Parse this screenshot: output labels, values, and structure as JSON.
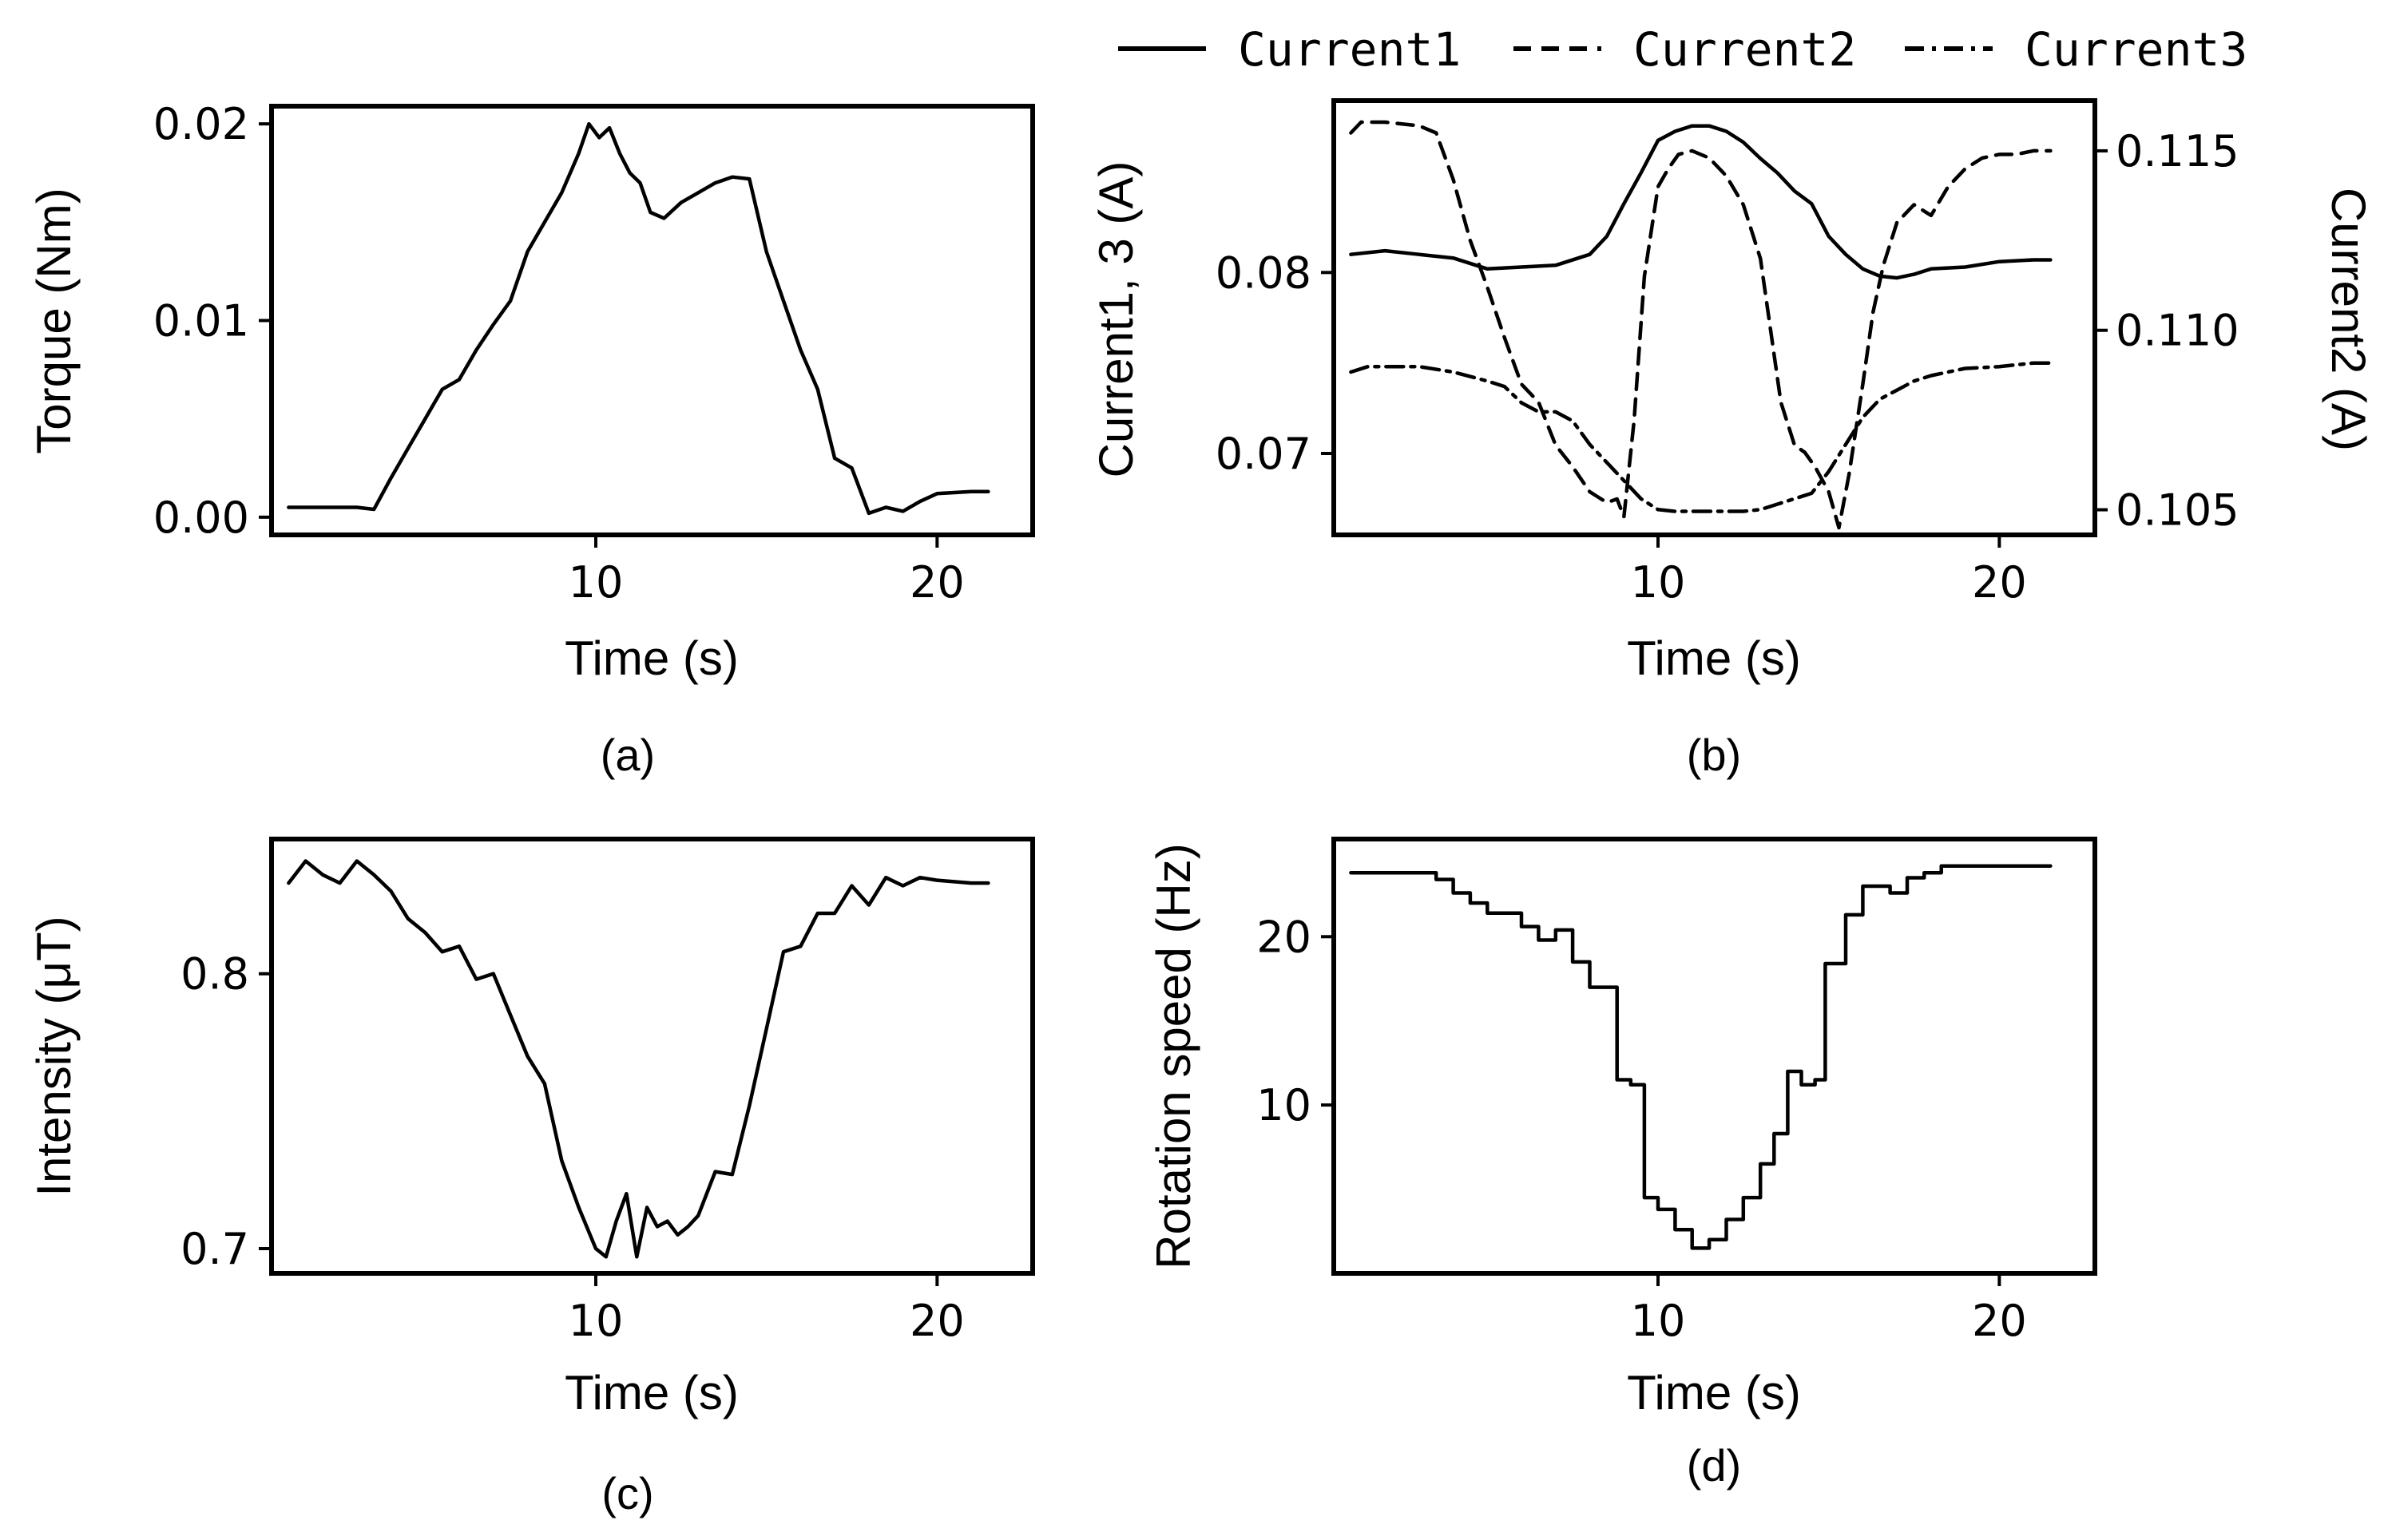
{
  "chart_data": [
    {
      "id": "a",
      "type": "line",
      "caption": "(a)",
      "xlabel": "Time (s)",
      "ylabel": "Torque (Nm)",
      "xlim": [
        0.5,
        22.8
      ],
      "ylim": [
        -0.0009,
        0.0209
      ],
      "xticks": [
        {
          "v": 10,
          "label": "10"
        },
        {
          "v": 20,
          "label": "20"
        }
      ],
      "yticks": [
        {
          "v": 0.0,
          "label": "0.00"
        },
        {
          "v": 0.01,
          "label": "0.01"
        },
        {
          "v": 0.02,
          "label": "0.02"
        }
      ],
      "series": [
        {
          "name": "Torque",
          "style": "solid",
          "x": [
            1.0,
            2.0,
            3.0,
            3.5,
            4.0,
            4.5,
            5.0,
            5.5,
            6.0,
            6.5,
            7.0,
            7.5,
            8.0,
            8.5,
            9.0,
            9.5,
            9.8,
            10.1,
            10.4,
            10.7,
            11.0,
            11.3,
            11.6,
            12.0,
            12.5,
            13.0,
            13.5,
            14.0,
            14.5,
            15.0,
            15.5,
            16.0,
            16.5,
            17.0,
            17.5,
            18.0,
            18.5,
            19.0,
            19.5,
            20.0,
            21.0,
            21.5
          ],
          "y": [
            0.0005,
            0.0005,
            0.0005,
            0.0004,
            0.002,
            0.0035,
            0.005,
            0.0065,
            0.007,
            0.0085,
            0.0098,
            0.011,
            0.0135,
            0.015,
            0.0165,
            0.0185,
            0.02,
            0.0193,
            0.0198,
            0.0185,
            0.0175,
            0.017,
            0.0155,
            0.0152,
            0.016,
            0.0165,
            0.017,
            0.0173,
            0.0172,
            0.0135,
            0.011,
            0.0085,
            0.0065,
            0.003,
            0.0025,
            0.0002,
            0.0005,
            0.0003,
            0.0008,
            0.0012,
            0.0013,
            0.0013
          ]
        }
      ]
    },
    {
      "id": "b",
      "type": "line",
      "caption": "(b)",
      "xlabel": "Time (s)",
      "ylabel": "Current1, 3 (A)",
      "ylabel_right": "Current2 (A)",
      "xlim": [
        0.5,
        22.8
      ],
      "ylim": [
        0.0655,
        0.0895
      ],
      "ylim_right": [
        0.1043,
        0.1164
      ],
      "xticks": [
        {
          "v": 10,
          "label": "10"
        },
        {
          "v": 20,
          "label": "20"
        }
      ],
      "yticks": [
        {
          "v": 0.07,
          "label": "0.07"
        },
        {
          "v": 0.08,
          "label": "0.08"
        }
      ],
      "yticks_right": [
        {
          "v": 0.105,
          "label": "0.105"
        },
        {
          "v": 0.11,
          "label": "0.110"
        },
        {
          "v": 0.115,
          "label": "0.115"
        }
      ],
      "legend": {
        "position": "top"
      },
      "series": [
        {
          "name": "Current1",
          "style": "solid",
          "axis": "left",
          "x": [
            1.0,
            2.0,
            3.0,
            4.0,
            5.0,
            6.0,
            7.0,
            8.0,
            8.5,
            9.0,
            9.5,
            10.0,
            10.5,
            11.0,
            11.5,
            12.0,
            12.5,
            13.0,
            13.5,
            14.0,
            14.5,
            15.0,
            15.5,
            16.0,
            16.5,
            17.0,
            17.5,
            18.0,
            19.0,
            20.0,
            21.0,
            21.5
          ],
          "y": [
            0.081,
            0.0812,
            0.081,
            0.0808,
            0.0802,
            0.0803,
            0.0804,
            0.081,
            0.082,
            0.0838,
            0.0855,
            0.0873,
            0.0878,
            0.0881,
            0.0881,
            0.0878,
            0.0872,
            0.0863,
            0.0855,
            0.0845,
            0.0838,
            0.082,
            0.081,
            0.0802,
            0.0798,
            0.0797,
            0.0799,
            0.0802,
            0.0803,
            0.0806,
            0.0807,
            0.0807
          ]
        },
        {
          "name": "Current2",
          "style": "dashed",
          "axis": "right",
          "x": [
            1.0,
            1.3,
            2.0,
            3.0,
            3.5,
            4.0,
            4.5,
            5.0,
            5.5,
            6.0,
            6.5,
            7.0,
            7.5,
            8.0,
            8.5,
            8.8,
            9.0,
            9.3,
            9.6,
            10.0,
            10.3,
            10.6,
            11.0,
            11.5,
            12.0,
            12.5,
            13.0,
            13.3,
            13.6,
            14.0,
            14.3,
            14.6,
            15.0,
            15.3,
            15.6,
            16.0,
            16.3,
            16.6,
            17.0,
            17.5,
            18.0,
            18.5,
            19.0,
            19.5,
            20.0,
            20.5,
            21.0,
            21.5
          ],
          "y": [
            0.1155,
            0.1158,
            0.1158,
            0.1157,
            0.1155,
            0.1142,
            0.1125,
            0.1112,
            0.1098,
            0.1085,
            0.108,
            0.1068,
            0.1062,
            0.1055,
            0.1052,
            0.1053,
            0.1048,
            0.1075,
            0.1115,
            0.114,
            0.1145,
            0.1149,
            0.115,
            0.1148,
            0.1143,
            0.1135,
            0.112,
            0.11,
            0.108,
            0.1068,
            0.1066,
            0.1062,
            0.1055,
            0.1045,
            0.106,
            0.1085,
            0.1105,
            0.1118,
            0.113,
            0.1135,
            0.1132,
            0.114,
            0.1145,
            0.1148,
            0.1149,
            0.1149,
            0.115,
            0.115
          ]
        },
        {
          "name": "Current3",
          "style": "dashdot",
          "axis": "left",
          "x": [
            1.0,
            1.5,
            2.0,
            3.0,
            4.0,
            5.0,
            5.5,
            6.0,
            6.5,
            7.0,
            7.5,
            8.0,
            8.5,
            9.0,
            9.5,
            10.0,
            10.5,
            11.0,
            11.5,
            12.0,
            12.5,
            13.0,
            13.5,
            14.0,
            14.5,
            15.0,
            15.5,
            16.0,
            16.5,
            17.0,
            17.5,
            18.0,
            18.5,
            19.0,
            20.0,
            21.0,
            21.5
          ],
          "y": [
            0.0745,
            0.0748,
            0.0748,
            0.0748,
            0.0745,
            0.074,
            0.0737,
            0.0728,
            0.0723,
            0.0723,
            0.0718,
            0.0705,
            0.0695,
            0.0685,
            0.0675,
            0.0669,
            0.0668,
            0.0668,
            0.0668,
            0.0668,
            0.0668,
            0.0669,
            0.0672,
            0.0675,
            0.0678,
            0.069,
            0.0705,
            0.072,
            0.073,
            0.0735,
            0.074,
            0.0743,
            0.0745,
            0.0747,
            0.0748,
            0.075,
            0.075
          ]
        }
      ]
    },
    {
      "id": "c",
      "type": "line",
      "caption": "(c)",
      "xlabel": "Time (s)",
      "ylabel": "Intensity (μT)",
      "xlim": [
        0.5,
        22.8
      ],
      "ylim": [
        0.691,
        0.849
      ],
      "xticks": [
        {
          "v": 10,
          "label": "10"
        },
        {
          "v": 20,
          "label": "20"
        }
      ],
      "yticks": [
        {
          "v": 0.7,
          "label": "0.7"
        },
        {
          "v": 0.8,
          "label": "0.8"
        }
      ],
      "series": [
        {
          "name": "Intensity",
          "style": "solid",
          "x": [
            1.0,
            1.5,
            2.0,
            2.5,
            3.0,
            3.5,
            4.0,
            4.5,
            5.0,
            5.5,
            6.0,
            6.5,
            7.0,
            7.5,
            8.0,
            8.5,
            9.0,
            9.5,
            10.0,
            10.3,
            10.6,
            10.9,
            11.2,
            11.5,
            11.8,
            12.1,
            12.4,
            12.7,
            13.0,
            13.5,
            14.0,
            14.5,
            15.0,
            15.5,
            16.0,
            16.5,
            17.0,
            17.5,
            18.0,
            18.5,
            19.0,
            19.5,
            20.0,
            21.0,
            21.5
          ],
          "y": [
            0.833,
            0.841,
            0.836,
            0.833,
            0.841,
            0.836,
            0.83,
            0.82,
            0.815,
            0.808,
            0.81,
            0.798,
            0.8,
            0.785,
            0.77,
            0.76,
            0.732,
            0.715,
            0.7,
            0.697,
            0.71,
            0.72,
            0.697,
            0.715,
            0.708,
            0.71,
            0.705,
            0.708,
            0.712,
            0.728,
            0.727,
            0.752,
            0.78,
            0.808,
            0.81,
            0.822,
            0.822,
            0.832,
            0.825,
            0.835,
            0.832,
            0.835,
            0.834,
            0.833,
            0.833
          ]
        }
      ]
    },
    {
      "id": "d",
      "type": "line",
      "caption": "(d)",
      "xlabel": "Time (s)",
      "ylabel": "Rotation speed (Hz)",
      "xlim": [
        0.5,
        22.8
      ],
      "ylim": [
        0.0,
        25.8
      ],
      "xticks": [
        {
          "v": 10,
          "label": "10"
        },
        {
          "v": 20,
          "label": "20"
        }
      ],
      "yticks": [
        {
          "v": 10,
          "label": "10"
        },
        {
          "v": 20,
          "label": "20"
        }
      ],
      "series": [
        {
          "name": "Rotation speed",
          "style": "solid",
          "x": [
            1.0,
            3.5,
            3.5,
            4.0,
            4.0,
            4.5,
            4.5,
            5.0,
            5.0,
            6.0,
            6.0,
            6.5,
            6.5,
            7.0,
            7.0,
            7.5,
            7.5,
            8.0,
            8.0,
            8.8,
            8.8,
            9.2,
            9.2,
            9.6,
            9.6,
            10.0,
            10.0,
            10.5,
            10.5,
            11.0,
            11.0,
            11.5,
            11.5,
            12.0,
            12.0,
            12.5,
            12.5,
            13.0,
            13.0,
            13.4,
            13.4,
            13.8,
            13.8,
            14.2,
            14.2,
            14.6,
            14.6,
            14.9,
            14.9,
            15.5,
            15.5,
            16.0,
            16.0,
            16.8,
            16.8,
            17.3,
            17.3,
            17.8,
            17.8,
            18.3,
            18.3,
            19.8,
            19.8,
            21.5
          ],
          "y": [
            23.8,
            23.8,
            23.4,
            23.4,
            22.6,
            22.6,
            22.0,
            22.0,
            21.4,
            21.4,
            20.6,
            20.6,
            19.8,
            19.8,
            20.4,
            20.4,
            18.5,
            18.5,
            17.0,
            17.0,
            11.5,
            11.5,
            11.2,
            11.2,
            4.5,
            4.5,
            3.8,
            3.8,
            2.6,
            2.6,
            1.5,
            1.5,
            2.0,
            2.0,
            3.2,
            3.2,
            4.5,
            4.5,
            6.5,
            6.5,
            8.3,
            8.3,
            12.0,
            12.0,
            11.2,
            11.2,
            11.5,
            11.5,
            18.4,
            18.4,
            21.3,
            21.3,
            23.0,
            23.0,
            22.6,
            22.6,
            23.5,
            23.5,
            23.8,
            23.8,
            24.2,
            24.2,
            24.2,
            24.2
          ]
        }
      ]
    }
  ]
}
